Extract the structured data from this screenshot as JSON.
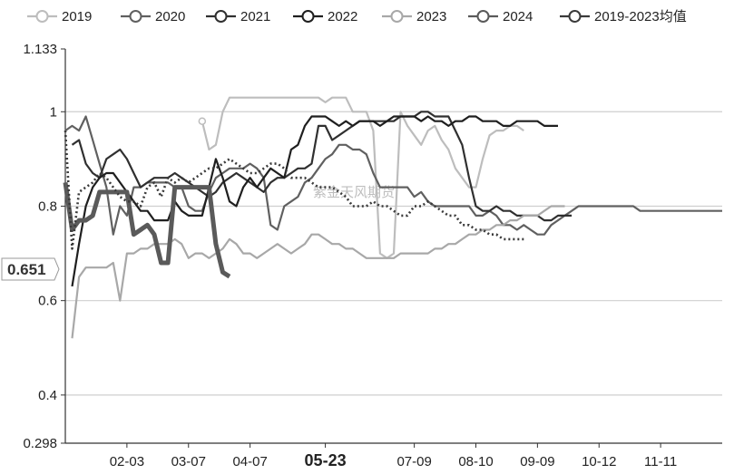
{
  "chart_data": {
    "type": "line",
    "title": "",
    "xlabel": "",
    "ylabel": "",
    "ylim": [
      0.298,
      1.133
    ],
    "y_ticks": [
      "1.133",
      "1",
      "0.8",
      "0.6",
      "0.4",
      "0.298"
    ],
    "x_ticks": [
      "02-03",
      "03-07",
      "04-07",
      "05-23",
      "07-09",
      "08-10",
      "09-09",
      "10-12",
      "11-11"
    ],
    "x_tick_index": [
      9,
      18,
      27,
      38,
      51,
      60,
      69,
      78,
      87
    ],
    "highlight_tick": "05-23",
    "current_value_label": "0.651",
    "watermark": "紫金天风期货",
    "legend": {
      "position": "top"
    },
    "grid": {
      "y": true,
      "x": false
    },
    "colors": {
      "2019": "#bdbdbd",
      "2020": "#606060",
      "2021": "#303030",
      "2022": "#1f1f1f",
      "2023": "#a8a8a8",
      "2024": "#5a5a5a",
      "2019-2023均值": "#3a3a3a"
    },
    "series": [
      {
        "name": "2019",
        "style": "thin",
        "start": 20,
        "values": [
          0.98,
          0.92,
          0.93,
          1.0,
          1.03,
          1.03,
          1.03,
          1.03,
          1.03,
          1.03,
          1.03,
          1.03,
          1.03,
          1.03,
          1.03,
          1.03,
          1.03,
          1.03,
          1.02,
          1.03,
          1.03,
          1.03,
          1.0,
          1.0,
          1.0,
          0.96,
          0.7,
          0.69,
          0.7,
          1.0,
          0.97,
          0.95,
          0.93,
          0.96,
          0.97,
          0.94,
          0.92,
          0.88,
          0.86,
          0.84,
          0.84,
          0.9,
          0.95,
          0.96,
          0.96,
          0.97,
          0.97,
          0.96
        ],
        "markers": [
          20,
          69,
          84
        ]
      },
      {
        "name": "2020",
        "style": "thin",
        "start": 0,
        "values": [
          0.96,
          0.97,
          0.96,
          0.99,
          0.94,
          0.89,
          0.84,
          0.74,
          0.8,
          0.78,
          0.84,
          0.84,
          0.85,
          0.85,
          0.85,
          0.85,
          0.84,
          0.84,
          0.8,
          0.79,
          0.79,
          0.83,
          0.86,
          0.87,
          0.88,
          0.88,
          0.88,
          0.89,
          0.88,
          0.86,
          0.76,
          0.75,
          0.8,
          0.81,
          0.82,
          0.85,
          0.86,
          0.88,
          0.9,
          0.91,
          0.93,
          0.93,
          0.92,
          0.92,
          0.91,
          0.87,
          0.84,
          0.84,
          0.84,
          0.84,
          0.84,
          0.82,
          0.83,
          0.81,
          0.8,
          0.8,
          0.8,
          0.8,
          0.8,
          0.8,
          0.78,
          0.78,
          0.79,
          0.78,
          0.76,
          0.76,
          0.75,
          0.76,
          0.75,
          0.74,
          0.74,
          0.76,
          0.77,
          0.78,
          0.79,
          0.8,
          0.8,
          0.8,
          0.8,
          0.8,
          0.8,
          0.8,
          0.8,
          0.8,
          0.79,
          0.79,
          0.79,
          0.79,
          0.79,
          0.79,
          0.79,
          0.79,
          0.79,
          0.79,
          0.79,
          0.79,
          0.79
        ],
        "markers": []
      },
      {
        "name": "2021",
        "style": "thin",
        "start": 1,
        "values": [
          0.93,
          0.94,
          0.89,
          0.87,
          0.86,
          0.9,
          0.91,
          0.92,
          0.9,
          0.87,
          0.84,
          0.85,
          0.86,
          0.86,
          0.86,
          0.87,
          0.86,
          0.85,
          0.84,
          0.83,
          0.82,
          0.83,
          0.85,
          0.86,
          0.87,
          0.86,
          0.85,
          0.84,
          0.83,
          0.85,
          0.86,
          0.86,
          0.87,
          0.88,
          0.88,
          0.89,
          0.97,
          0.97,
          0.94,
          0.95,
          0.96,
          0.97,
          0.98,
          0.98,
          0.98,
          0.98,
          0.98,
          0.98,
          0.99,
          0.99,
          0.99,
          1.0,
          1.0,
          0.99,
          0.99,
          0.99,
          0.96,
          0.93,
          0.86,
          0.8,
          0.79,
          0.79,
          0.8,
          0.79,
          0.79,
          0.78,
          0.78,
          0.78,
          0.78,
          0.77,
          0.77,
          0.78,
          0.78,
          0.78
        ],
        "markers": []
      },
      {
        "name": "2022",
        "style": "thin",
        "start": 1,
        "values": [
          0.63,
          0.72,
          0.8,
          0.84,
          0.86,
          0.87,
          0.87,
          0.85,
          0.83,
          0.81,
          0.79,
          0.79,
          0.77,
          0.77,
          0.77,
          0.81,
          0.79,
          0.78,
          0.78,
          0.78,
          0.84,
          0.9,
          0.86,
          0.81,
          0.8,
          0.84,
          0.86,
          0.84,
          0.86,
          0.88,
          0.87,
          0.86,
          0.92,
          0.93,
          0.97,
          0.99,
          0.99,
          0.99,
          0.98,
          0.97,
          0.98,
          0.97,
          0.98,
          0.98,
          0.98,
          0.97,
          0.98,
          0.99,
          0.99,
          0.99,
          0.99,
          0.98,
          0.99,
          0.98,
          0.98,
          0.97,
          0.98,
          0.98,
          0.99,
          0.99,
          0.98,
          0.98,
          0.98,
          0.97,
          0.97,
          0.98,
          0.98,
          0.98,
          0.98,
          0.97,
          0.97,
          0.97
        ],
        "markers": []
      },
      {
        "name": "2023",
        "style": "thin",
        "start": 1,
        "values": [
          0.52,
          0.65,
          0.67,
          0.67,
          0.67,
          0.67,
          0.68,
          0.6,
          0.7,
          0.7,
          0.71,
          0.71,
          0.72,
          0.72,
          0.72,
          0.73,
          0.72,
          0.69,
          0.7,
          0.7,
          0.69,
          0.7,
          0.71,
          0.73,
          0.72,
          0.7,
          0.7,
          0.69,
          0.7,
          0.71,
          0.72,
          0.71,
          0.7,
          0.71,
          0.72,
          0.74,
          0.74,
          0.73,
          0.72,
          0.72,
          0.71,
          0.71,
          0.7,
          0.69,
          0.69,
          0.69,
          0.69,
          0.69,
          0.7,
          0.7,
          0.7,
          0.7,
          0.7,
          0.71,
          0.71,
          0.72,
          0.72,
          0.73,
          0.74,
          0.74,
          0.75,
          0.75,
          0.76,
          0.76,
          0.77,
          0.77,
          0.78,
          0.78,
          0.78,
          0.79,
          0.8,
          0.8,
          0.8
        ],
        "markers": []
      },
      {
        "name": "2024",
        "style": "bold",
        "start": 0,
        "values": [
          0.85,
          0.75,
          0.77,
          0.77,
          0.78,
          0.83,
          0.83,
          0.83,
          0.83,
          0.83,
          0.74,
          0.75,
          0.76,
          0.74,
          0.68,
          0.68,
          0.84,
          0.84,
          0.84,
          0.84,
          0.84,
          0.84,
          0.72,
          0.66,
          0.651
        ],
        "markers": []
      },
      {
        "name": "2019-2023均值",
        "style": "dotted",
        "start": 0,
        "values": [
          0.96,
          0.71,
          0.83,
          0.84,
          0.85,
          0.87,
          0.86,
          0.84,
          0.82,
          0.81,
          0.81,
          0.8,
          0.84,
          0.85,
          0.82,
          0.86,
          0.85,
          0.86,
          0.85,
          0.86,
          0.87,
          0.88,
          0.88,
          0.89,
          0.9,
          0.89,
          0.88,
          0.87,
          0.87,
          0.88,
          0.89,
          0.89,
          0.88,
          0.86,
          0.86,
          0.86,
          0.85,
          0.84,
          0.84,
          0.84,
          0.83,
          0.82,
          0.8,
          0.8,
          0.8,
          0.81,
          0.8,
          0.8,
          0.79,
          0.78,
          0.78,
          0.8,
          0.8,
          0.81,
          0.8,
          0.79,
          0.78,
          0.78,
          0.76,
          0.76,
          0.75,
          0.75,
          0.74,
          0.74,
          0.73,
          0.73,
          0.73,
          0.73
        ],
        "markers": []
      }
    ]
  }
}
